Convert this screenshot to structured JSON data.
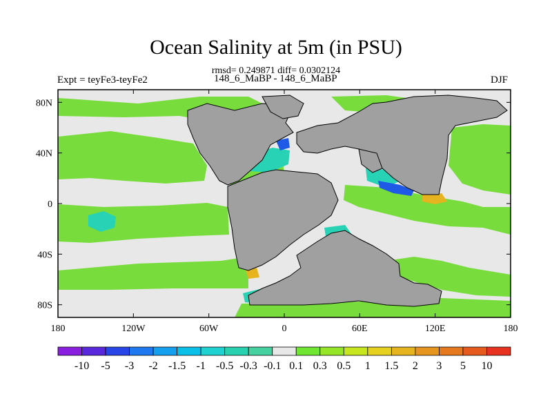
{
  "chart_data": {
    "type": "heatmap",
    "title": "Ocean Salinity at 5m (in PSU)",
    "subtitle": "rmsd= 0.249871 diff= 0.0302124",
    "left_label": "Expt = teyFe3-teyFe2",
    "center_label": "148_6_MaBP - 148_6_MaBP",
    "right_label": "DJF",
    "xlim": [
      -180,
      180
    ],
    "ylim": [
      -90,
      90
    ],
    "x_ticks": [
      {
        "value": -180,
        "label": "180"
      },
      {
        "value": -120,
        "label": "120W"
      },
      {
        "value": -60,
        "label": "60W"
      },
      {
        "value": 0,
        "label": "0"
      },
      {
        "value": 60,
        "label": "60E"
      },
      {
        "value": 120,
        "label": "120E"
      },
      {
        "value": 180,
        "label": "180"
      }
    ],
    "y_ticks": [
      {
        "value": 80,
        "label": "80N"
      },
      {
        "value": 40,
        "label": "40N"
      },
      {
        "value": 0,
        "label": "0"
      },
      {
        "value": -40,
        "label": "40S"
      },
      {
        "value": -80,
        "label": "80S"
      }
    ],
    "colorbar": {
      "levels": [
        "-10",
        "-5",
        "-3",
        "-2",
        "-1.5",
        "-1",
        "-0.5",
        "-0.3",
        "-0.1",
        "0.1",
        "0.3",
        "0.5",
        "1",
        "1.5",
        "2",
        "3",
        "5",
        "10"
      ],
      "colors": [
        "#8a1ee0",
        "#5a28dc",
        "#2846e8",
        "#1e78f0",
        "#14a0ee",
        "#0ac0e8",
        "#1ed2d2",
        "#28d2b0",
        "#46d2a0",
        "#e8e8e8",
        "#6ee632",
        "#96e628",
        "#c8e61e",
        "#e6d21e",
        "#e6b41e",
        "#e6961e",
        "#e6781e",
        "#e65a1e",
        "#e6321e"
      ]
    },
    "colors": {
      "ocean_background": "#e8e8e8",
      "land": "#a0a0a0",
      "positive_salinity": "#78dc3c",
      "negative_salinity": "#28d2b4",
      "strong_negative": "#1e5ae6",
      "strong_positive": "#e6b41e"
    }
  }
}
